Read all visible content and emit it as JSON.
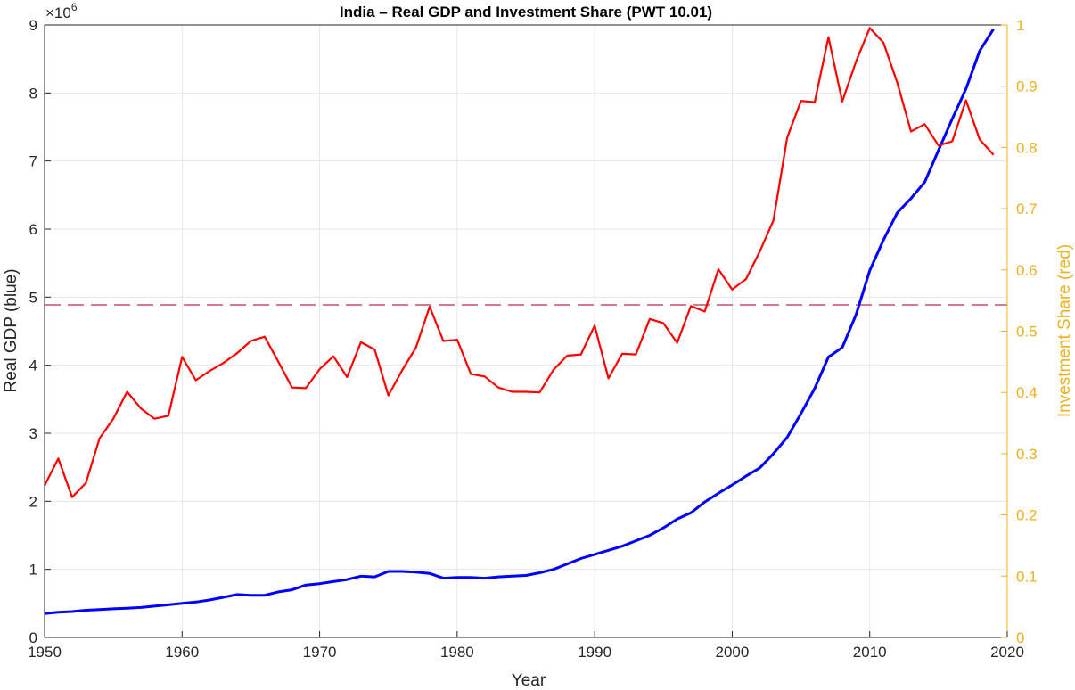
{
  "chart_data": {
    "type": "line",
    "title": "India – Real GDP and Investment Share (PWT 10.01)",
    "xlabel": "Year",
    "ylabel_left": "Real GDP (blue)",
    "ylabel_right": "Investment Share (red)",
    "left_exponent_label": "×10",
    "left_exponent_power": "6",
    "xlim": [
      1950,
      2020
    ],
    "ylim_left": [
      0,
      9000000
    ],
    "ylim_right": [
      0,
      1
    ],
    "grid": true,
    "colors": {
      "gdp": "#0000ff",
      "investment": "#ff0000",
      "reference": "#c0506a",
      "right_axis": "#edb120",
      "left_axis": "#262626",
      "grid": "#e6e6e6"
    },
    "x_ticks": [
      1950,
      1960,
      1970,
      1980,
      1990,
      2000,
      2010,
      2020
    ],
    "left_ticks": [
      {
        "value": 0,
        "label": "0"
      },
      {
        "value": 1000000,
        "label": "1"
      },
      {
        "value": 2000000,
        "label": "2"
      },
      {
        "value": 3000000,
        "label": "3"
      },
      {
        "value": 4000000,
        "label": "4"
      },
      {
        "value": 5000000,
        "label": "5"
      },
      {
        "value": 6000000,
        "label": "6"
      },
      {
        "value": 7000000,
        "label": "7"
      },
      {
        "value": 8000000,
        "label": "8"
      },
      {
        "value": 9000000,
        "label": "9"
      }
    ],
    "right_ticks": [
      {
        "value": 0,
        "label": "0"
      },
      {
        "value": 0.1,
        "label": "0.1"
      },
      {
        "value": 0.2,
        "label": "0.2"
      },
      {
        "value": 0.3,
        "label": "0.3"
      },
      {
        "value": 0.4,
        "label": "0.4"
      },
      {
        "value": 0.5,
        "label": "0.5"
      },
      {
        "value": 0.6,
        "label": "0.6"
      },
      {
        "value": 0.7,
        "label": "0.7"
      },
      {
        "value": 0.8,
        "label": "0.8"
      },
      {
        "value": 0.9,
        "label": "0.9"
      },
      {
        "value": 1,
        "label": "1"
      }
    ],
    "reference_line": {
      "axis": "right",
      "value": 0.543,
      "style": "dashed"
    },
    "x": [
      1950,
      1951,
      1952,
      1953,
      1954,
      1955,
      1956,
      1957,
      1958,
      1959,
      1960,
      1961,
      1962,
      1963,
      1964,
      1965,
      1966,
      1967,
      1968,
      1969,
      1970,
      1971,
      1972,
      1973,
      1974,
      1975,
      1976,
      1977,
      1978,
      1979,
      1980,
      1981,
      1982,
      1983,
      1984,
      1985,
      1986,
      1987,
      1988,
      1989,
      1990,
      1991,
      1992,
      1993,
      1994,
      1995,
      1996,
      1997,
      1998,
      1999,
      2000,
      2001,
      2002,
      2003,
      2004,
      2005,
      2006,
      2007,
      2008,
      2009,
      2010,
      2011,
      2012,
      2013,
      2014,
      2015,
      2016,
      2017,
      2018,
      2019
    ],
    "series": [
      {
        "axis": "left",
        "values": [
          350000,
          370000,
          380000,
          400000,
          410000,
          420000,
          430000,
          440000,
          460000,
          480000,
          500000,
          520000,
          550000,
          590000,
          630000,
          620000,
          620000,
          670000,
          700000,
          770000,
          790000,
          820000,
          850000,
          900000,
          890000,
          970000,
          970000,
          960000,
          940000,
          870000,
          880000,
          880000,
          870000,
          890000,
          900000,
          910000,
          950000,
          1000000,
          1080000,
          1160000,
          1220000,
          1280000,
          1340000,
          1420000,
          1500000,
          1610000,
          1740000,
          1830000,
          1990000,
          2120000,
          2240000,
          2370000,
          2490000,
          2700000,
          2940000,
          3290000,
          3660000,
          4120000,
          4260000,
          4740000,
          5390000,
          5840000,
          6240000,
          6450000,
          6690000,
          7160000,
          7620000,
          8060000,
          8620000,
          8940000
        ]
      },
      {
        "axis": "right",
        "values": [
          0.248,
          0.292,
          0.229,
          0.252,
          0.325,
          0.357,
          0.401,
          0.374,
          0.357,
          0.362,
          0.458,
          0.42,
          0.435,
          0.448,
          0.464,
          0.484,
          0.491,
          0.45,
          0.408,
          0.407,
          0.438,
          0.459,
          0.425,
          0.482,
          0.47,
          0.395,
          0.436,
          0.473,
          0.54,
          0.484,
          0.486,
          0.43,
          0.426,
          0.408,
          0.401,
          0.401,
          0.4,
          0.437,
          0.46,
          0.462,
          0.509,
          0.423,
          0.463,
          0.462,
          0.52,
          0.513,
          0.481,
          0.541,
          0.532,
          0.601,
          0.568,
          0.585,
          0.63,
          0.681,
          0.816,
          0.876,
          0.874,
          0.98,
          0.875,
          0.94,
          0.995,
          0.971,
          0.906,
          0.826,
          0.838,
          0.803,
          0.81,
          0.877,
          0.813,
          0.788
        ]
      }
    ]
  }
}
